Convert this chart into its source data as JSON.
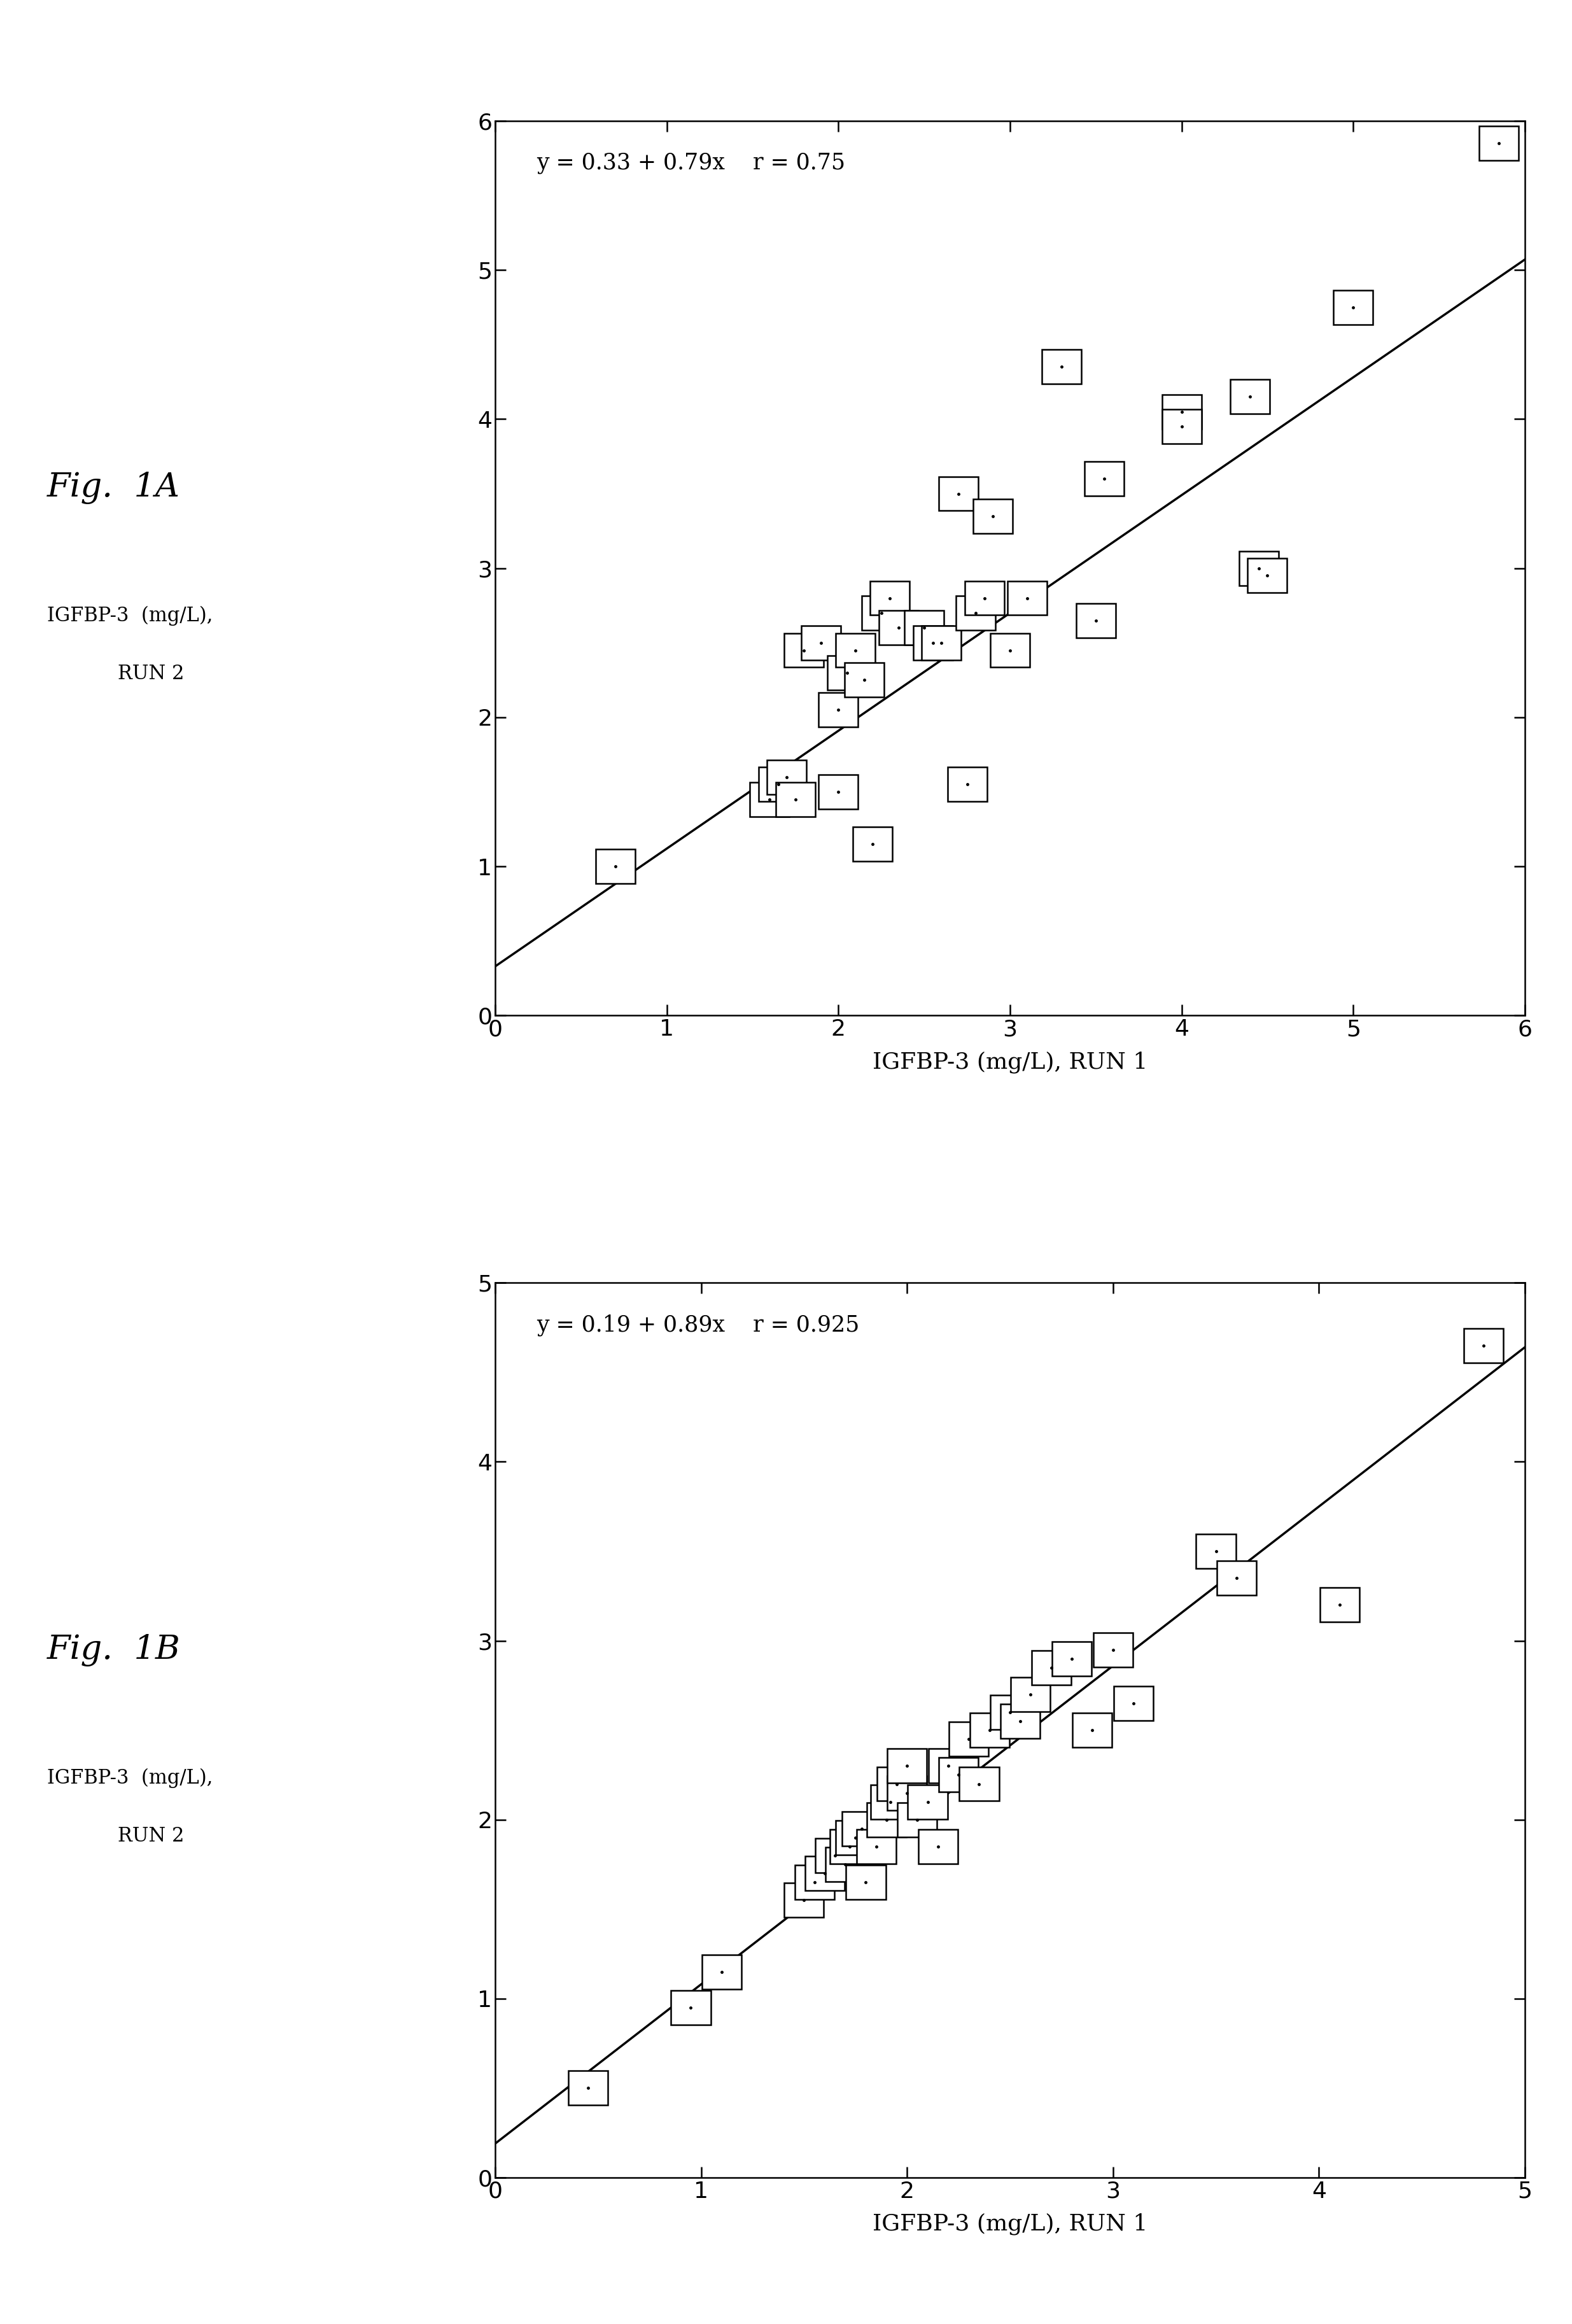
{
  "fig1A": {
    "x": [
      0.7,
      1.6,
      1.65,
      1.7,
      1.75,
      1.8,
      1.9,
      2.0,
      2.0,
      2.05,
      2.1,
      2.15,
      2.2,
      2.25,
      2.3,
      2.35,
      2.5,
      2.55,
      2.6,
      2.7,
      2.75,
      2.8,
      2.85,
      2.9,
      3.0,
      3.1,
      3.3,
      3.5,
      3.55,
      4.0,
      4.0,
      4.4,
      4.45,
      4.5,
      5.0,
      5.85
    ],
    "y": [
      1.0,
      1.45,
      1.55,
      1.6,
      1.45,
      2.45,
      2.5,
      2.05,
      1.5,
      2.3,
      2.45,
      2.25,
      1.15,
      2.7,
      2.8,
      2.6,
      2.6,
      2.5,
      2.5,
      3.5,
      1.55,
      2.7,
      2.8,
      3.35,
      2.45,
      2.8,
      4.35,
      2.65,
      3.6,
      4.05,
      3.95,
      4.15,
      3.0,
      2.95,
      4.75,
      5.85
    ],
    "intercept": 0.33,
    "slope": 0.79,
    "xlim": [
      0,
      6
    ],
    "ylim": [
      0,
      6
    ],
    "xticks": [
      0,
      1,
      2,
      3,
      4,
      5,
      6
    ],
    "yticks": [
      0,
      1,
      2,
      3,
      4,
      5,
      6
    ],
    "xlabel": "IGFBP-3 (mg/L), RUN 1",
    "equation_text": "y = 0.33 + 0.79x    r = 0.75",
    "fig_label": "Fig.  1A",
    "ylabel_line1": "IGFBP-3  (mg/L),",
    "ylabel_line2": "RUN 2",
    "sq_half": 0.115
  },
  "fig1B": {
    "x": [
      0.45,
      0.95,
      1.1,
      1.5,
      1.55,
      1.6,
      1.65,
      1.7,
      1.72,
      1.75,
      1.78,
      1.8,
      1.85,
      1.9,
      1.92,
      1.95,
      2.0,
      2.0,
      2.05,
      2.1,
      2.15,
      2.2,
      2.25,
      2.3,
      2.35,
      2.4,
      2.5,
      2.55,
      2.6,
      2.7,
      2.8,
      2.9,
      3.0,
      3.1,
      3.5,
      3.6,
      4.1,
      4.8
    ],
    "y": [
      0.5,
      0.95,
      1.15,
      1.55,
      1.65,
      1.7,
      1.8,
      1.75,
      1.85,
      1.9,
      1.95,
      1.65,
      1.85,
      2.0,
      2.1,
      2.2,
      2.15,
      2.3,
      2.0,
      2.1,
      1.85,
      2.3,
      2.25,
      2.45,
      2.2,
      2.5,
      2.6,
      2.55,
      2.7,
      2.85,
      2.9,
      2.5,
      2.95,
      2.65,
      3.5,
      3.35,
      3.2,
      4.65
    ],
    "intercept": 0.19,
    "slope": 0.89,
    "xlim": [
      0,
      5
    ],
    "ylim": [
      0,
      5
    ],
    "xticks": [
      0,
      1,
      2,
      3,
      4,
      5
    ],
    "yticks": [
      0,
      1,
      2,
      3,
      4,
      5
    ],
    "xlabel": "IGFBP-3 (mg/L), RUN 1",
    "equation_text": "y = 0.19 + 0.89x    r = 0.925",
    "fig_label": "Fig.  1B",
    "ylabel_line1": "IGFBP-3  (mg/L),",
    "ylabel_line2": "RUN 2",
    "sq_half": 0.096
  },
  "bg": "#ffffff",
  "lw": 2.5,
  "tick_fs": 26,
  "label_fs": 26,
  "eq_fs": 25,
  "figlabel_fs": 38,
  "side_fs": 22,
  "dot_size": 5,
  "sq_lw": 1.8
}
